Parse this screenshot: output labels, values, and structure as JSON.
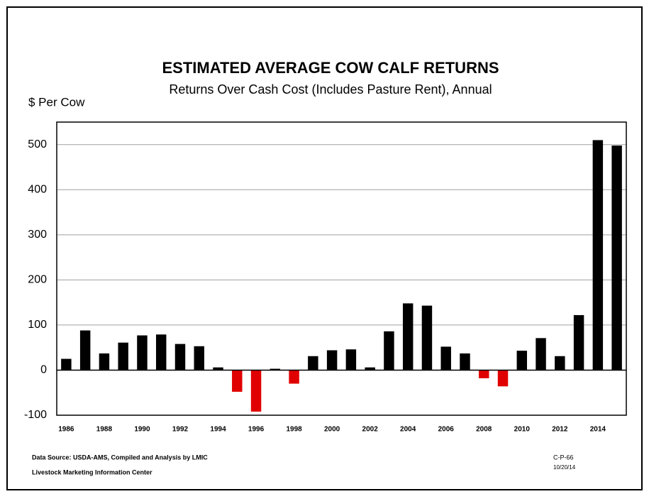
{
  "chart_data": {
    "type": "bar",
    "title": "ESTIMATED AVERAGE  COW CALF RETURNS",
    "subtitle": "Returns Over Cash Cost (Includes Pasture Rent), Annual",
    "y_axis_label": "$ Per Cow",
    "categories": [
      "1986",
      null,
      "1988",
      null,
      "1990",
      null,
      "1992",
      null,
      "1994",
      null,
      "1996",
      null,
      "1998",
      null,
      "2000",
      null,
      "2002",
      null,
      "2004",
      null,
      "2006",
      null,
      "2008",
      null,
      "2010",
      null,
      "2012",
      null,
      "2014",
      null
    ],
    "values": [
      25,
      88,
      37,
      61,
      77,
      79,
      58,
      53,
      6,
      -48,
      -92,
      3,
      -30,
      31,
      44,
      46,
      6,
      86,
      148,
      143,
      52,
      37,
      -18,
      -36,
      43,
      71,
      31,
      122,
      510,
      498
    ],
    "color": "#000000",
    "negative_color": "#e00000",
    "ylim": [
      -100,
      550
    ],
    "yticks": [
      -100,
      0,
      100,
      200,
      300,
      400,
      500
    ],
    "grid": true,
    "source": "Data Source:  USDA-AMS, Compiled and Analysis by LMIC",
    "publisher": "Livestock Marketing Information Center",
    "chart_code": "C-P-66",
    "date": "10/20/14"
  }
}
